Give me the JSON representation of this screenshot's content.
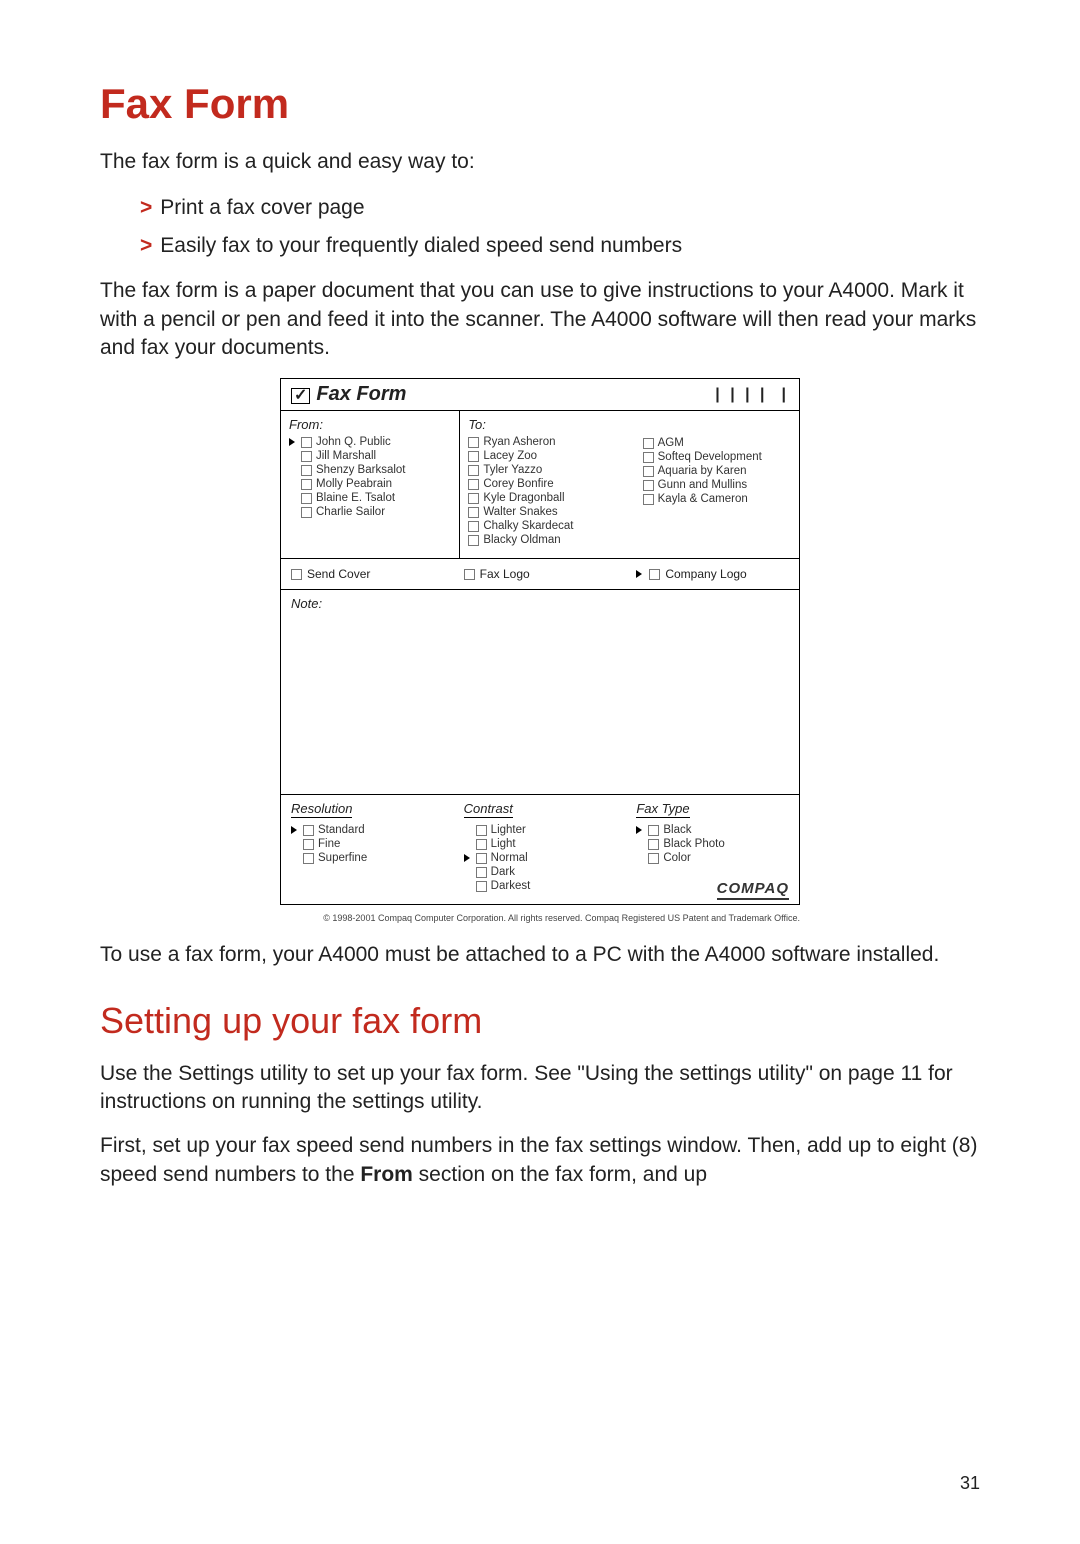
{
  "title": "Fax Form",
  "intro": "The fax form is a quick and easy way to:",
  "bullets": [
    "Print a fax cover page",
    "Easily fax to your frequently dialed speed send numbers"
  ],
  "para1": "The fax form is a paper document that you can use to give instructions to your A4000. Mark it with a pencil or pen and feed it into the scanner. The A4000 software will then read your marks and fax your documents.",
  "faxform": {
    "header_title": "Fax Form",
    "from_label": "From:",
    "to_label": "To:",
    "from_list": [
      "John Q. Public",
      "Jill Marshall",
      "Shenzy Barksalot",
      "Molly Peabrain",
      "Blaine E. Tsalot",
      "Charlie Sailor"
    ],
    "to_list1": [
      "Ryan Asheron",
      "Lacey Zoo",
      "Tyler Yazzo",
      "Corey Bonfire",
      "Kyle Dragonball",
      "Walter Snakes",
      "Chalky Skardecat",
      "Blacky Oldman"
    ],
    "to_list2": [
      "AGM",
      "Softeq Development",
      "Aquaria by Karen",
      "Gunn and Mullins",
      "Kayla & Cameron"
    ],
    "opt_send_cover": "Send Cover",
    "opt_fax_logo": "Fax Logo",
    "opt_company_logo": "Company Logo",
    "note_label": "Note:",
    "resolution_label": "Resolution",
    "resolution_opts": [
      "Standard",
      "Fine",
      "Superfine"
    ],
    "contrast_label": "Contrast",
    "contrast_opts": [
      "Lighter",
      "Light",
      "Normal",
      "Dark",
      "Darkest"
    ],
    "faxtype_label": "Fax Type",
    "faxtype_opts": [
      "Black",
      "Black Photo",
      "Color"
    ],
    "brand": "COMPAQ",
    "copyright": "© 1998-2001 Compaq Computer Corporation.  All rights reserved.  Compaq Registered US Patent and Trademark Office."
  },
  "para2": "To use a fax form, your A4000 must be attached to a PC with the A4000 software installed.",
  "subtitle": "Setting up your fax form",
  "para3": "Use the Settings utility to set up your fax form. See \"Using the settings utility\" on page 11 for instructions on running the settings utility.",
  "para4_a": "First, set up your fax speed send numbers in the fax settings window. Then, add up to eight (8) speed send numbers to the ",
  "para4_bold": "From",
  "para4_b": " section on the fax form, and up",
  "page_number": "31"
}
